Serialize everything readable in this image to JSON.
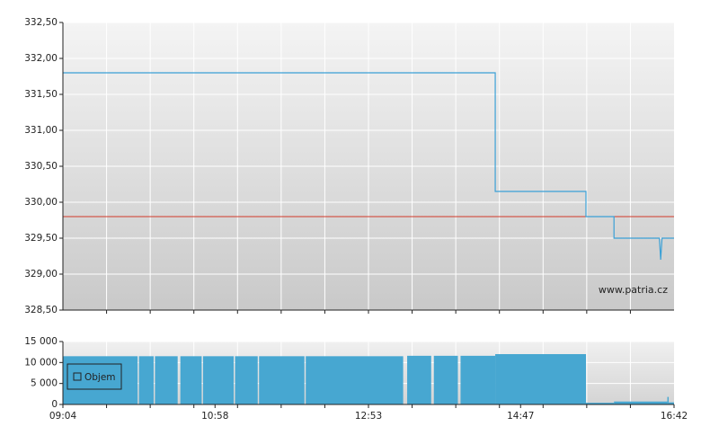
{
  "chart_data": [
    {
      "type": "line",
      "watermark": "www.patria.cz",
      "x": [
        "09:04",
        "14:28",
        "14:28",
        "15:36",
        "15:36",
        "15:57",
        "15:57",
        "16:31",
        "16:32",
        "16:33",
        "16:42"
      ],
      "series": [
        {
          "color": "#3aa0d6",
          "values": [
            331.8,
            331.8,
            330.15,
            330.15,
            329.8,
            329.8,
            329.5,
            329.5,
            329.2,
            329.5,
            329.5
          ]
        }
      ],
      "reference_line": {
        "value": 329.8,
        "color": "#d23a2a"
      },
      "xlim": [
        "09:04",
        "16:42"
      ],
      "ylim": [
        328.5,
        332.5
      ],
      "yticks": [
        {
          "value": 328.5,
          "label": "328,50"
        },
        {
          "value": 329,
          "label": "329,00"
        },
        {
          "value": 329.5,
          "label": "329,50"
        },
        {
          "value": 330,
          "label": "330,00"
        },
        {
          "value": 330.5,
          "label": "330,50"
        },
        {
          "value": 331,
          "label": "331,00"
        },
        {
          "value": 331.5,
          "label": "331,50"
        },
        {
          "value": 332,
          "label": "332,00"
        },
        {
          "value": 332.5,
          "label": "332,50"
        }
      ],
      "grid": true
    },
    {
      "type": "bar",
      "x": [
        "09:04",
        "10:00",
        "10:01",
        "10:12",
        "10:13",
        "10:30",
        "10:32",
        "10:48",
        "10:49",
        "11:12",
        "11:13",
        "11:30",
        "11:31",
        "12:05",
        "12:06",
        "13:19",
        "13:22",
        "13:40",
        "13:42",
        "14:00",
        "14:02",
        "14:28",
        "15:36",
        "15:57",
        "16:37",
        "16:38"
      ],
      "series": [
        {
          "name": "Objem",
          "color": "#47a7d1",
          "values": [
            11500,
            0,
            11500,
            0,
            11500,
            0,
            11500,
            0,
            11500,
            0,
            11500,
            0,
            11500,
            0,
            11500,
            0,
            11600,
            0,
            11600,
            0,
            11600,
            12000,
            400,
            700,
            1800,
            500
          ]
        }
      ],
      "xlim": [
        "09:04",
        "16:42"
      ],
      "xticks": [
        "09:04",
        "10:58",
        "12:53",
        "14:47",
        "16:42"
      ],
      "ylim": [
        0,
        15000
      ],
      "yticks": [
        0,
        {
          "value": 5000,
          "label": "5 000"
        },
        {
          "value": 10000,
          "label": "10 000"
        },
        {
          "value": 15000,
          "label": "15 000"
        }
      ],
      "grid": true
    }
  ]
}
